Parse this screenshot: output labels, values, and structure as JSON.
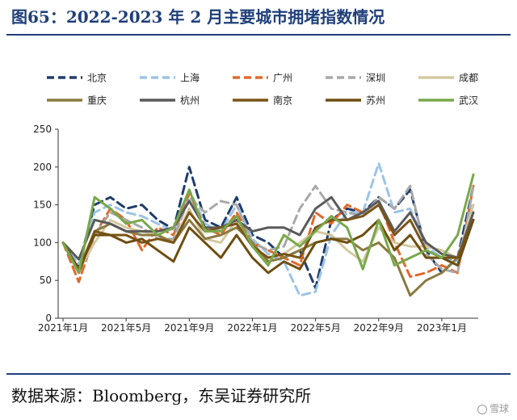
{
  "header": {
    "title": "图65：2022-2023 年 2 月主要城市拥堵指数情况"
  },
  "footer": {
    "source": "数据来源：Bloomberg，东吴证券研究所",
    "watermark": "雪球"
  },
  "chart_data": {
    "type": "line",
    "title": "图65：2022-2023 年 2 月主要城市拥堵指数情况",
    "xlabel": "",
    "ylabel": "",
    "ylim": [
      0,
      250
    ],
    "yticks": [
      0,
      50,
      100,
      150,
      200,
      250
    ],
    "x_tick_labels": [
      "2021年1月",
      "2021年5月",
      "2021年9月",
      "2022年1月",
      "2022年5月",
      "2022年9月",
      "2023年1月"
    ],
    "grid": false,
    "legend_position": "top",
    "x": [
      0,
      1,
      2,
      3,
      4,
      5,
      6,
      7,
      8,
      9,
      10,
      11,
      12,
      13,
      14,
      15,
      16,
      17,
      18,
      19,
      20,
      21,
      22,
      23,
      24,
      25,
      26
    ],
    "series": [
      {
        "name": "北京",
        "color": "#1f3d6b",
        "dash": "dashed",
        "values": [
          100,
          70,
          150,
          160,
          145,
          150,
          130,
          118,
          200,
          130,
          120,
          160,
          110,
          100,
          80,
          90,
          40,
          130,
          145,
          140,
          160,
          145,
          170,
          90,
          60,
          80,
          175
        ]
      },
      {
        "name": "上海",
        "color": "#9dc3e6",
        "dash": "dashed",
        "values": [
          100,
          72,
          140,
          150,
          140,
          135,
          125,
          115,
          170,
          125,
          115,
          150,
          105,
          85,
          75,
          30,
          35,
          110,
          140,
          140,
          205,
          140,
          145,
          95,
          80,
          75,
          155
        ]
      },
      {
        "name": "广州",
        "color": "#e0692d",
        "dash": "dashed",
        "values": [
          100,
          48,
          110,
          145,
          130,
          90,
          120,
          110,
          165,
          120,
          110,
          140,
          100,
          90,
          80,
          70,
          140,
          125,
          150,
          140,
          155,
          100,
          55,
          60,
          70,
          60,
          175
        ]
      },
      {
        "name": "深圳",
        "color": "#a8a8a8",
        "dash": "dashed",
        "values": [
          100,
          60,
          110,
          140,
          130,
          120,
          105,
          105,
          160,
          140,
          155,
          150,
          100,
          90,
          95,
          145,
          175,
          145,
          140,
          135,
          160,
          145,
          175,
          85,
          65,
          60,
          175
        ]
      },
      {
        "name": "成都",
        "color": "#d4c8a0",
        "dash": "solid",
        "values": [
          100,
          62,
          100,
          130,
          120,
          115,
          110,
          100,
          145,
          105,
          100,
          130,
          95,
          80,
          85,
          100,
          115,
          110,
          90,
          75,
          120,
          100,
          95,
          95,
          90,
          80,
          150
        ]
      },
      {
        "name": "重庆",
        "color": "#8a7a40",
        "dash": "solid",
        "values": [
          100,
          65,
          115,
          125,
          115,
          110,
          110,
          100,
          130,
          105,
          110,
          120,
          100,
          75,
          80,
          90,
          100,
          105,
          105,
          90,
          100,
          80,
          30,
          50,
          60,
          80,
          130
        ]
      },
      {
        "name": "杭州",
        "color": "#5a5a5a",
        "dash": "solid",
        "values": [
          100,
          78,
          130,
          125,
          115,
          115,
          115,
          120,
          155,
          120,
          120,
          130,
          115,
          120,
          120,
          110,
          145,
          160,
          130,
          140,
          155,
          115,
          140,
          100,
          85,
          80,
          140
        ]
      },
      {
        "name": "南京",
        "color": "#7a5418",
        "dash": "solid",
        "values": [
          100,
          60,
          115,
          110,
          110,
          100,
          105,
          100,
          140,
          115,
          120,
          125,
          95,
          80,
          85,
          80,
          120,
          130,
          130,
          135,
          150,
          110,
          130,
          90,
          80,
          80,
          130
        ]
      },
      {
        "name": "苏州",
        "color": "#6e4e10",
        "dash": "solid",
        "values": [
          100,
          65,
          110,
          110,
          100,
          105,
          90,
          75,
          120,
          100,
          80,
          110,
          80,
          60,
          75,
          65,
          100,
          105,
          100,
          110,
          130,
          90,
          110,
          80,
          80,
          70,
          130
        ]
      },
      {
        "name": "武汉",
        "color": "#79a84a",
        "dash": "solid",
        "values": [
          100,
          60,
          160,
          145,
          125,
          130,
          110,
          120,
          170,
          115,
          115,
          135,
          95,
          70,
          110,
          95,
          115,
          135,
          120,
          65,
          130,
          70,
          80,
          90,
          80,
          110,
          190
        ]
      }
    ]
  }
}
